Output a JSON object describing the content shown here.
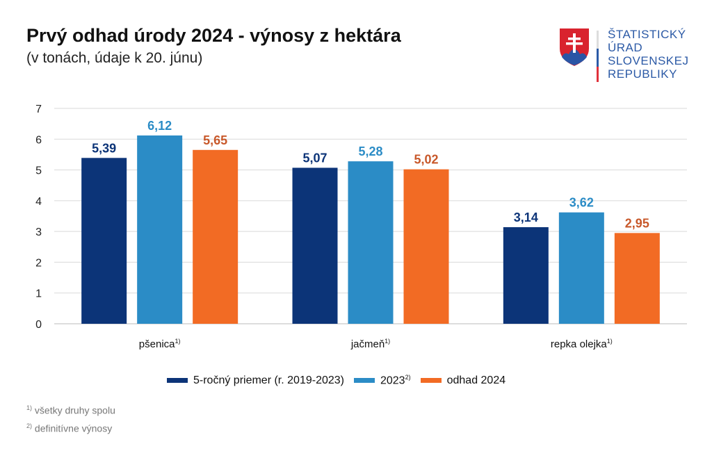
{
  "header": {
    "title": "Prvý odhad úrody 2024 - výnosy z hektára",
    "subtitle": "(v tonách, údaje k 20. júnu)"
  },
  "logo": {
    "lines": [
      "ŠTATISTICKÝ",
      "ÚRAD",
      "SLOVENSKEJ",
      "REPUBLIKY"
    ]
  },
  "chart_data": {
    "type": "bar",
    "title": "Prvý odhad úrody 2024 - výnosy z hektára",
    "categories": [
      "pšenica",
      "jačmeň",
      "repka olejka"
    ],
    "category_sup": [
      "1)",
      "1)",
      "1)"
    ],
    "series": [
      {
        "name": "5-ročný priemer (r. 2019-2023)",
        "sup": "",
        "color": "#0c3478",
        "label_color": "#0c3478",
        "values": [
          5.39,
          5.07,
          3.14
        ],
        "labels": [
          "5,39",
          "5,07",
          "3,14"
        ]
      },
      {
        "name": "2023",
        "sup": "2)",
        "color": "#2b8cc6",
        "label_color": "#2b8cc6",
        "values": [
          6.12,
          5.28,
          3.62
        ],
        "labels": [
          "6,12",
          "5,28",
          "3,62"
        ]
      },
      {
        "name": "odhad 2024",
        "sup": "",
        "color": "#f26b24",
        "label_color": "#c8582a",
        "values": [
          5.65,
          5.02,
          2.95
        ],
        "labels": [
          "5,65",
          "5,02",
          "2,95"
        ]
      }
    ],
    "ylim": [
      0,
      7
    ],
    "yticks": [
      "0",
      "1",
      "2",
      "3",
      "4",
      "5",
      "6",
      "7"
    ],
    "grid": true,
    "legend_position": "bottom"
  },
  "footnotes": [
    {
      "sup": "1)",
      "text": "všetky druhy spolu"
    },
    {
      "sup": "2)",
      "text": "definitívne výnosy"
    }
  ]
}
